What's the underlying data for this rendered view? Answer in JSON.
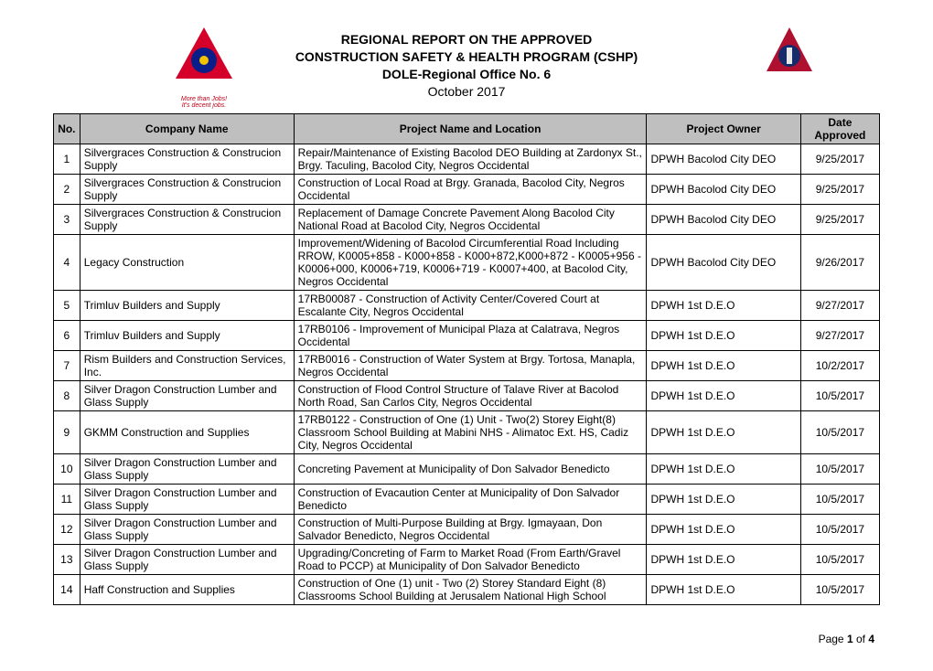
{
  "header": {
    "line1": "REGIONAL REPORT ON THE APPROVED",
    "line2": "CONSTRUCTION SAFETY & HEALTH PROGRAM (CSHP)",
    "line3": "DOLE-Regional Office No. 6",
    "line4": "October 2017"
  },
  "logos": {
    "left": {
      "shape_fill": "#d4002a",
      "center_fill": "#0a1e8a",
      "accent_fill": "#f2c200",
      "tagline1": "More than Jobs!",
      "tagline2": "It's decent jobs.",
      "tagline_color": "#c00018"
    },
    "right": {
      "shape_fill": "#b01030",
      "center_fill": "#142a6a",
      "accent_fill": "#e8e8e8"
    }
  },
  "columns": {
    "no": "No.",
    "company": "Company Name",
    "project": "Project Name and Location",
    "owner": "Project Owner",
    "date": "Date Approved"
  },
  "rows": [
    {
      "no": "1",
      "company": "Silvergraces Construction & Construcion Supply",
      "project": "Repair/Maintenance of Existing Bacolod DEO Building at Zardonyx St., Brgy. Taculing, Bacolod City, Negros Occidental",
      "owner": "DPWH Bacolod City DEO",
      "date": "9/25/2017"
    },
    {
      "no": "2",
      "company": "Silvergraces Construction & Construcion Supply",
      "project": "Construction of Local Road at Brgy. Granada, Bacolod City, Negros Occidental",
      "owner": "DPWH Bacolod City DEO",
      "date": "9/25/2017"
    },
    {
      "no": "3",
      "company": "Silvergraces Construction & Construcion Supply",
      "project": "Replacement of Damage Concrete Pavement Along Bacolod City National Road at Bacolod City, Negros Occidental",
      "owner": "DPWH Bacolod City DEO",
      "date": "9/25/2017"
    },
    {
      "no": "4",
      "company": "Legacy Construction",
      "project": "Improvement/Widening of Bacolod Circumferential Road Including RROW, K0005+858 - K000+858 - K000+872,K000+872 - K0005+956 - K0006+000, K0006+719, K0006+719 - K0007+400, at Bacolod City, Negros Occidental",
      "owner": "DPWH Bacolod City DEO",
      "date": "9/26/2017"
    },
    {
      "no": "5",
      "company": "Trimluv Builders and Supply",
      "project": "17RB00087 - Construction of Activity Center/Covered Court at Escalante City, Negros Occidental",
      "owner": "DPWH 1st D.E.O",
      "date": "9/27/2017"
    },
    {
      "no": "6",
      "company": "Trimluv Builders and Supply",
      "project": "17RB0106 - Improvement of Municipal Plaza at Calatrava, Negros Occidental",
      "owner": "DPWH 1st D.E.O",
      "date": "9/27/2017"
    },
    {
      "no": "7",
      "company": "Rism Builders and Construction Services, Inc.",
      "project": "17RB0016 - Construction of Water System at Brgy. Tortosa, Manapla, Negros Occidental",
      "owner": "DPWH 1st D.E.O",
      "date": "10/2/2017"
    },
    {
      "no": "8",
      "company": "Silver Dragon Construction Lumber and Glass Supply",
      "project": "Construction of Flood Control Structure of Talave River at Bacolod North Road, San Carlos City, Negros Occidental",
      "owner": "DPWH 1st D.E.O",
      "date": "10/5/2017"
    },
    {
      "no": "9",
      "company": "GKMM Construction and Supplies",
      "project": "17RB0122 - Construction of One (1) Unit - Two(2) Storey Eight(8) Classroom School Building at Mabini NHS - Alimatoc Ext. HS, Cadiz City, Negros Occidental",
      "owner": "DPWH 1st D.E.O",
      "date": "10/5/2017"
    },
    {
      "no": "10",
      "company": "Silver Dragon Construction Lumber and Glass Supply",
      "project": "Concreting Pavement at Municipality of Don Salvador Benedicto",
      "owner": "DPWH 1st D.E.O",
      "date": "10/5/2017"
    },
    {
      "no": "11",
      "company": "Silver Dragon Construction Lumber and Glass Supply",
      "project": "Construction of Evacaution Center at Municipality of Don Salvador Benedicto",
      "owner": "DPWH 1st D.E.O",
      "date": "10/5/2017"
    },
    {
      "no": "12",
      "company": "Silver Dragon Construction Lumber and Glass Supply",
      "project": "Construction of Multi-Purpose Building at Brgy. Igmayaan, Don Salvador Benedicto, Negros Occidental",
      "owner": "DPWH 1st D.E.O",
      "date": "10/5/2017"
    },
    {
      "no": "13",
      "company": "Silver Dragon Construction Lumber and Glass Supply",
      "project": "Upgrading/Concreting of Farm to Market Road (From Earth/Gravel Road to PCCP) at Municipality of Don Salvador Benedicto",
      "owner": "DPWH 1st D.E.O",
      "date": "10/5/2017"
    },
    {
      "no": "14",
      "company": "Haff Construction and Supplies",
      "project": "Construction of One (1) unit - Two (2) Storey Standard Eight (8) Classrooms School Building at Jerusalem National High School",
      "owner": "DPWH 1st D.E.O",
      "date": "10/5/2017"
    }
  ],
  "footer": {
    "prefix": "Page ",
    "current": "1",
    "of": " of ",
    "total": "4"
  }
}
